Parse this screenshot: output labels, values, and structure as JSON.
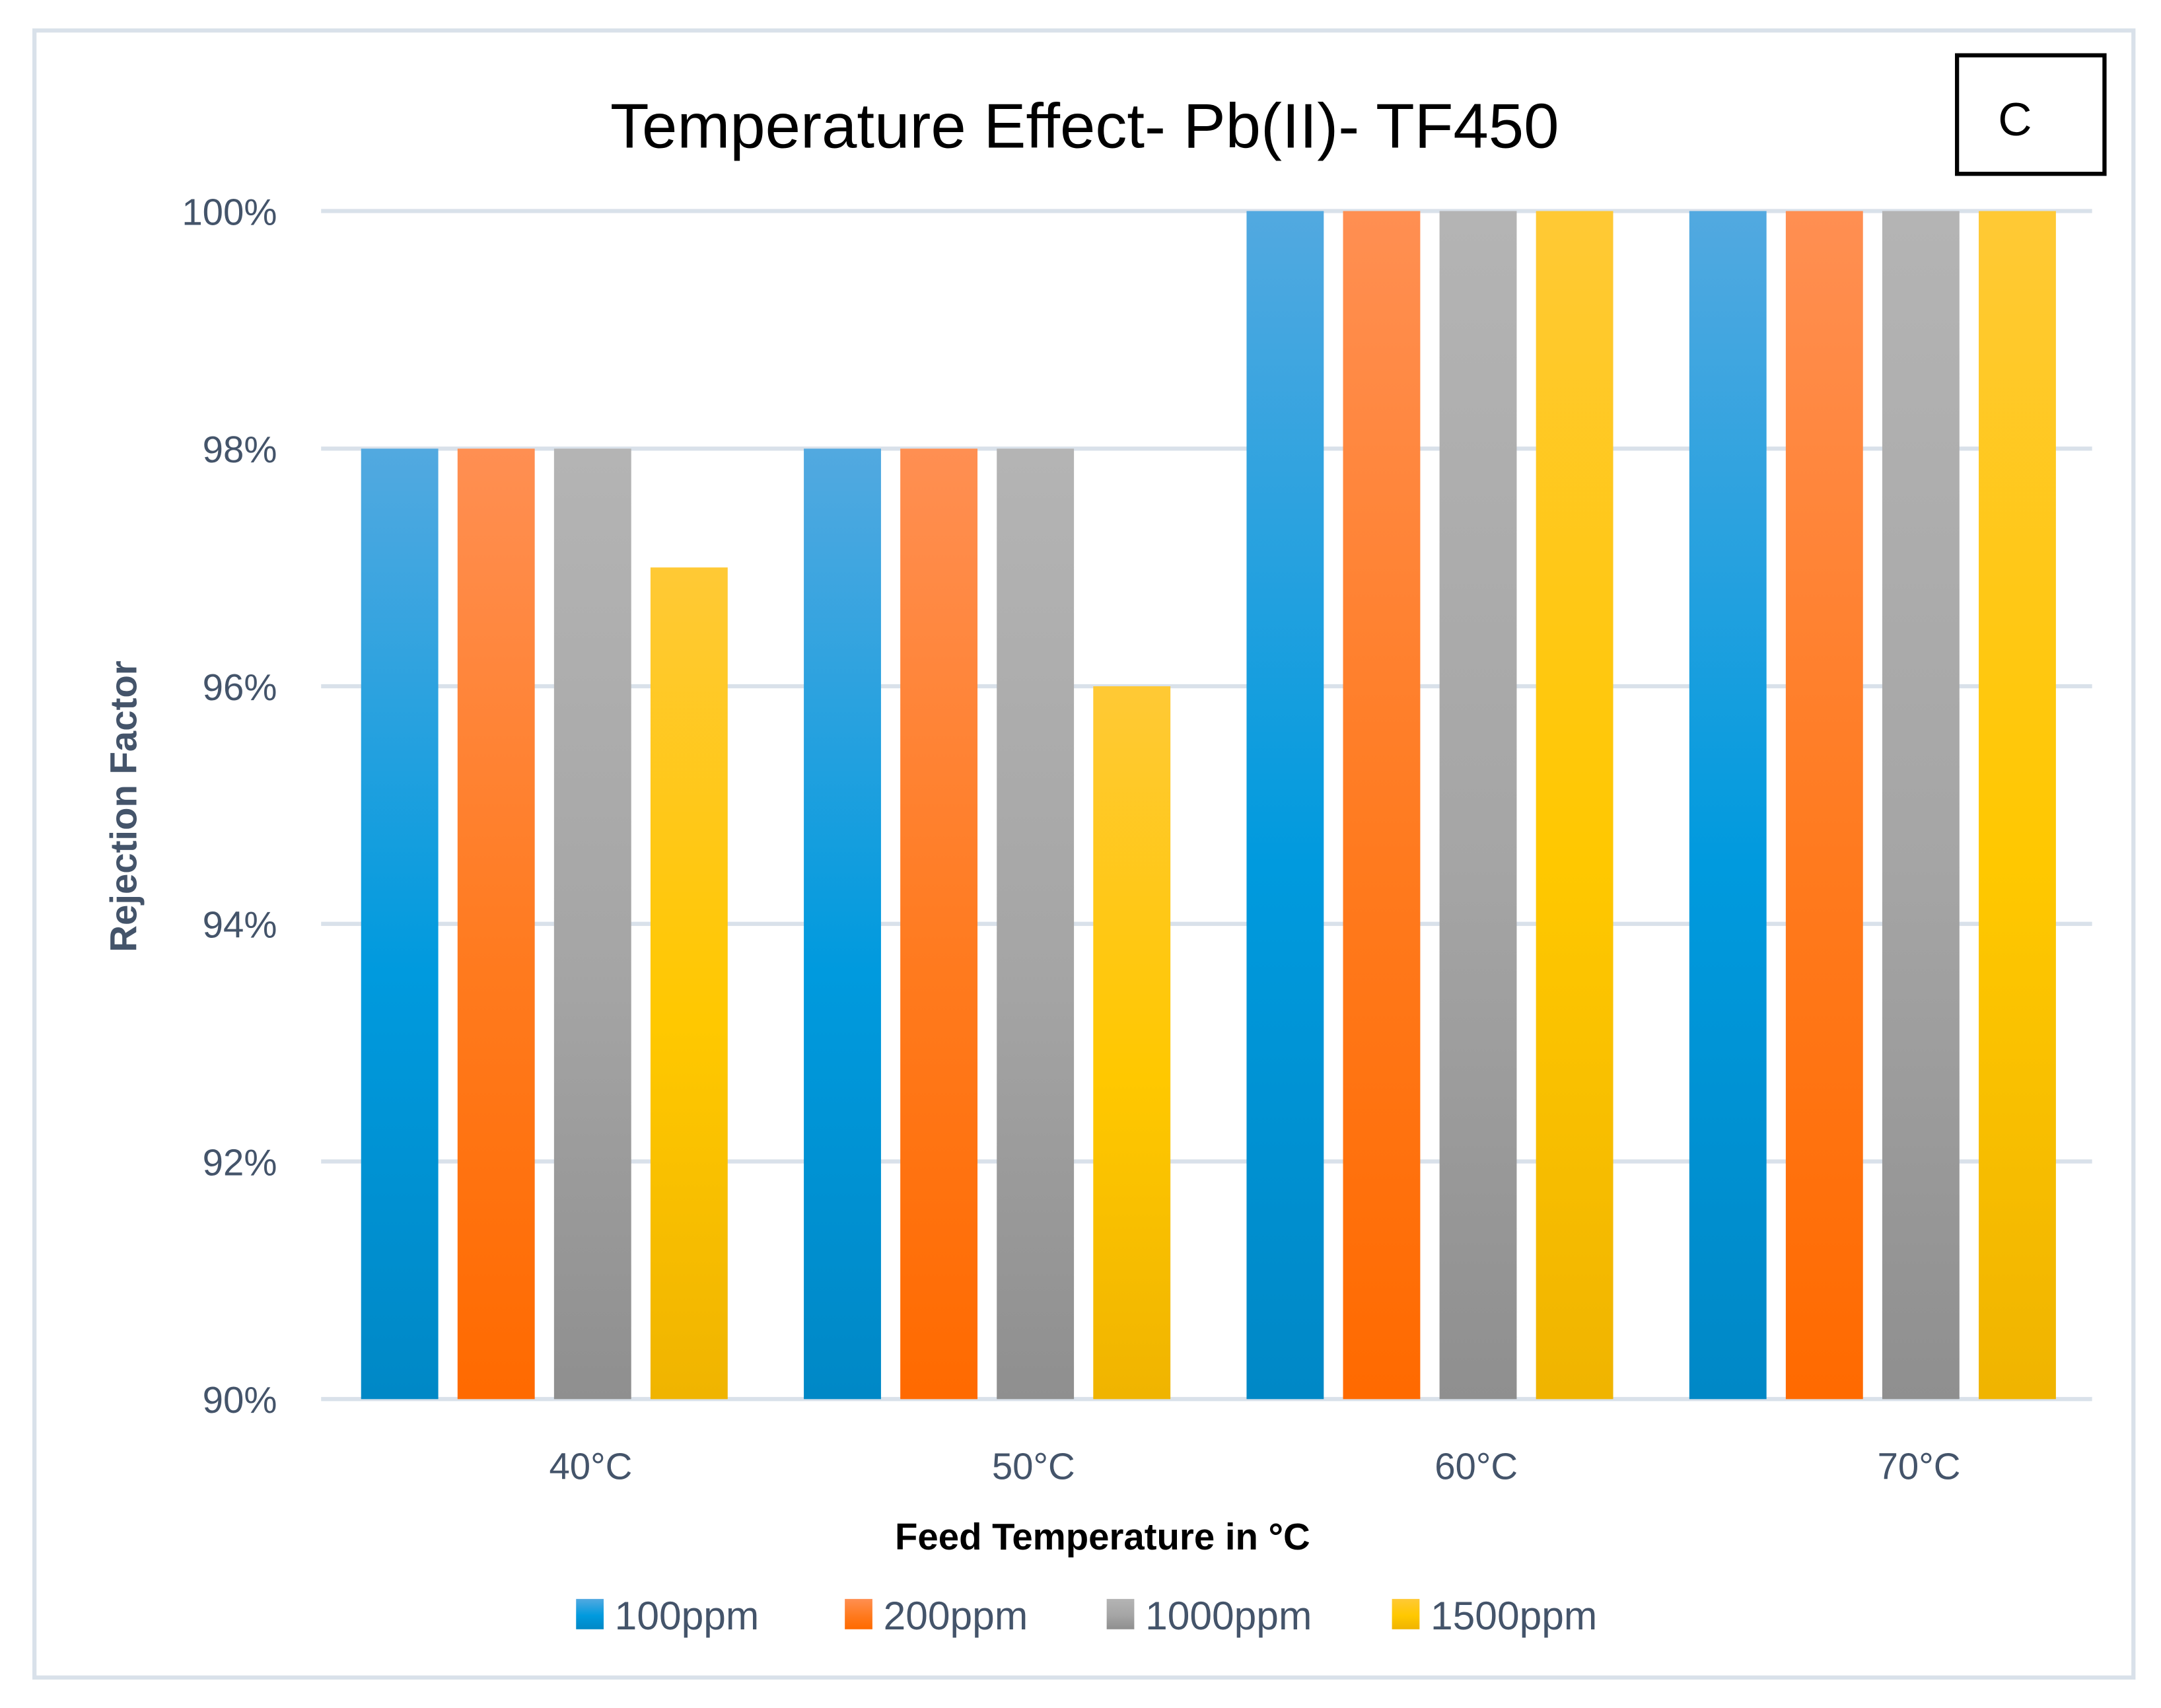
{
  "chart_data": {
    "type": "bar",
    "title": "Temperature Effect- Pb(II)- TF450",
    "panel_label": "C",
    "xlabel": "Feed Temperature in °C",
    "ylabel": "Rejection Factor",
    "categories": [
      "40°C",
      "50°C",
      "60°C",
      "70°C"
    ],
    "ylim": [
      90,
      100
    ],
    "yticks": [
      90,
      92,
      94,
      96,
      98,
      100
    ],
    "ytick_labels": [
      "90%",
      "92%",
      "94%",
      "96%",
      "98%",
      "100%"
    ],
    "grid": true,
    "legend_position": "bottom",
    "series": [
      {
        "name": "100ppm",
        "values": [
          98,
          98,
          100,
          100
        ],
        "color": "#009ade"
      },
      {
        "name": "200ppm",
        "values": [
          98,
          98,
          100,
          100
        ],
        "color": "#ff6f0f"
      },
      {
        "name": "1000ppm",
        "values": [
          98,
          98,
          100,
          100
        ],
        "color": "#a5a5a5"
      },
      {
        "name": "1500ppm",
        "values": [
          97,
          96,
          100,
          100
        ],
        "color": "#ffc000"
      }
    ]
  }
}
